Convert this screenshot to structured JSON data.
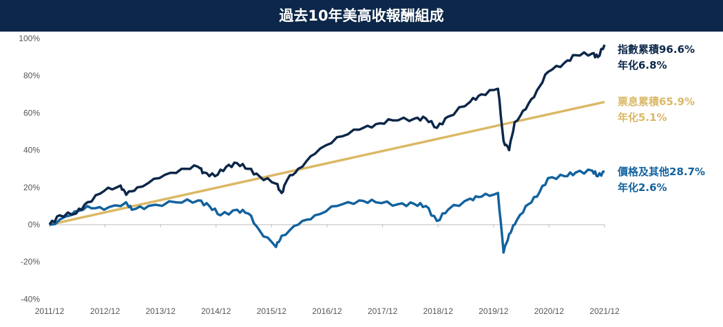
{
  "chart_data": {
    "type": "line",
    "title": "過去10年美高收報酬組成",
    "xlabel": "",
    "ylabel": "",
    "ylim": [
      -40,
      100
    ],
    "xlim": [
      2011.92,
      2021.92
    ],
    "grid": false,
    "y_ticks": [
      "100%",
      "80%",
      "60%",
      "40%",
      "20%",
      "0%",
      "-20%",
      "-40%"
    ],
    "y_tick_values": [
      100,
      80,
      60,
      40,
      20,
      0,
      -20,
      -40
    ],
    "x_ticks": [
      "2011/12",
      "2012/12",
      "2013/12",
      "2014/12",
      "2015/12",
      "2016/12",
      "2017/12",
      "2018/12",
      "2019/12",
      "2020/12",
      "2021/12"
    ],
    "series": [
      {
        "name": "指數累積",
        "color": "#0c2749",
        "x": [
          2011.92,
          2012.1,
          2012.4,
          2012.6,
          2012.9,
          2013.2,
          2013.3,
          2013.5,
          2013.9,
          2014.3,
          2014.6,
          2014.7,
          2014.9,
          2015.1,
          2015.3,
          2015.5,
          2015.7,
          2016.0,
          2016.1,
          2016.2,
          2016.4,
          2016.7,
          2017.1,
          2017.5,
          2017.8,
          2018.1,
          2018.5,
          2018.7,
          2018.9,
          2019.1,
          2019.5,
          2019.7,
          2020.0,
          2020.1,
          2020.2,
          2020.3,
          2020.5,
          2020.7,
          2020.9,
          2021.2,
          2021.4,
          2021.7,
          2021.8,
          2021.92
        ],
        "values": [
          0,
          5,
          6,
          12,
          18,
          21,
          16,
          20,
          25,
          30,
          31,
          28,
          26,
          31,
          33,
          30,
          26,
          22,
          17,
          24,
          30,
          38,
          47,
          51,
          54,
          56,
          57,
          57,
          52,
          58,
          66,
          70,
          73,
          45,
          40,
          55,
          62,
          72,
          82,
          87,
          91,
          92,
          90,
          96.6
        ]
      },
      {
        "name": "票息累積",
        "color": "#dbb865",
        "x": [
          2011.92,
          2021.92
        ],
        "values": [
          0,
          65.9
        ]
      },
      {
        "name": "價格及其他",
        "color": "#12629e",
        "x": [
          2011.92,
          2012.3,
          2012.6,
          2012.9,
          2013.3,
          2013.4,
          2013.7,
          2014.2,
          2014.6,
          2014.8,
          2015.0,
          2015.3,
          2015.5,
          2015.7,
          2016.0,
          2016.1,
          2016.4,
          2016.7,
          2017.1,
          2017.5,
          2017.8,
          2018.2,
          2018.5,
          2018.7,
          2018.9,
          2019.1,
          2019.5,
          2019.7,
          2020.0,
          2020.1,
          2020.2,
          2020.3,
          2020.5,
          2020.7,
          2020.9,
          2021.2,
          2021.4,
          2021.7,
          2021.8,
          2021.92
        ],
        "values": [
          0,
          5,
          10,
          8,
          12,
          8,
          10,
          12,
          13,
          10,
          5,
          8,
          6,
          -3,
          -12,
          -6,
          0,
          5,
          10,
          13,
          12,
          11,
          11,
          10,
          2,
          8,
          14,
          15,
          17,
          -15,
          -5,
          0,
          10,
          15,
          25,
          26,
          28,
          29,
          26,
          28.7
        ]
      }
    ],
    "annotations": [
      {
        "label": "指數累積96.6%",
        "sub": "年化6.8%",
        "color": "#0c2749"
      },
      {
        "label": "票息累積65.9%",
        "sub": "年化5.1%",
        "color": "#dbb865"
      },
      {
        "label": "價格及其他28.7%",
        "sub": "年化2.6%",
        "color": "#12629e"
      }
    ]
  }
}
